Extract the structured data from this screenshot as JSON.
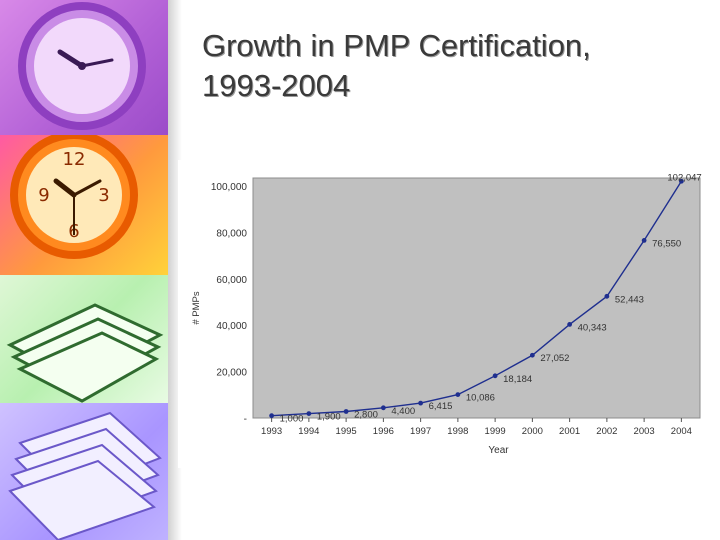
{
  "slide": {
    "title_line1": "Growth in PMP Certification,",
    "title_line2": "1993-2004"
  },
  "colors": {
    "plot_bg": "#c0c0c0",
    "line": "#1f2f8f",
    "point": "#1f2f8f",
    "text": "#333333"
  },
  "chart_data": {
    "type": "line",
    "x": [
      "1993",
      "1994",
      "1995",
      "1996",
      "1997",
      "1998",
      "1999",
      "2000",
      "2001",
      "2002",
      "2003",
      "2004"
    ],
    "series": [
      {
        "values": [
          1000,
          1900,
          2800,
          4400,
          6415,
          10086,
          18184,
          27052,
          40343,
          52443,
          76550,
          102047
        ],
        "labels": [
          "1,000",
          "1,900",
          "2,800",
          "4,400",
          "6,415",
          "10,086",
          "18,184",
          "27,052",
          "40,343",
          "52,443",
          "76,550",
          "102,047"
        ]
      }
    ],
    "xlabel": "Year",
    "ylabel": "# PMPs",
    "ylim": [
      0,
      100000
    ],
    "yticks": [
      "-",
      "20,000",
      "40,000",
      "60,000",
      "80,000",
      "100,000"
    ],
    "grid": false,
    "legend": "none"
  }
}
